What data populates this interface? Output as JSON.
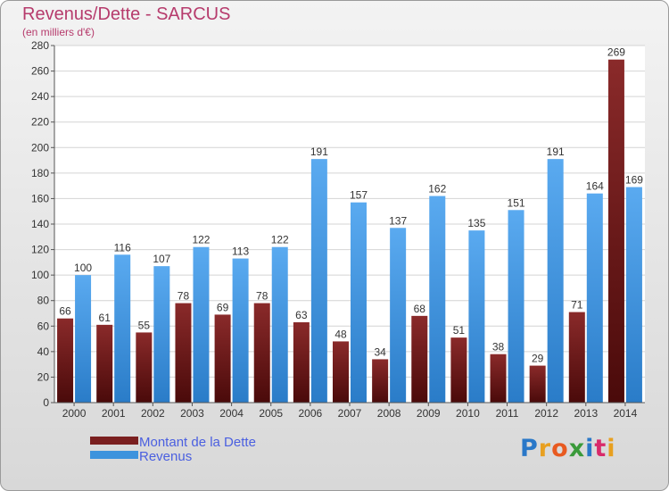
{
  "header": {
    "title": "Revenus/Dette - SARCUS",
    "subtitle": "(en milliers d'€)"
  },
  "chart_data": {
    "type": "bar",
    "title": "Revenus/Dette - SARCUS",
    "ylabel": "(en milliers d'€)",
    "xlabel": "",
    "categories": [
      "2000",
      "2001",
      "2002",
      "2003",
      "2004",
      "2005",
      "2006",
      "2007",
      "2008",
      "2009",
      "2010",
      "2011",
      "2012",
      "2013",
      "2014"
    ],
    "series": [
      {
        "name": "Montant de la Dette",
        "color": "#7a1f1f",
        "values": [
          66,
          61,
          55,
          78,
          69,
          78,
          63,
          48,
          34,
          68,
          51,
          38,
          29,
          71,
          269
        ]
      },
      {
        "name": "Revenus",
        "color": "#3d93dd",
        "values": [
          100,
          116,
          107,
          122,
          113,
          122,
          191,
          157,
          137,
          162,
          135,
          151,
          191,
          164,
          169
        ]
      }
    ],
    "ylim": [
      0,
      280
    ],
    "yticks": [
      0,
      20,
      40,
      60,
      80,
      100,
      120,
      140,
      160,
      180,
      200,
      220,
      240,
      260,
      280
    ],
    "grid": true,
    "legend_position": "bottom-left"
  },
  "legend": {
    "items": [
      {
        "label": "Montant de la Dette",
        "color": "#7a1f1f"
      },
      {
        "label": "Revenus",
        "color": "#3d93dd"
      }
    ]
  },
  "logo": {
    "letters": [
      "P",
      "r",
      "o",
      "x",
      "i",
      "t",
      "i"
    ],
    "colors": [
      "#2a78c8",
      "#e8a020",
      "#e85a20",
      "#3a9a3a",
      "#2a78c8",
      "#d82a6a",
      "#e8a020"
    ]
  }
}
